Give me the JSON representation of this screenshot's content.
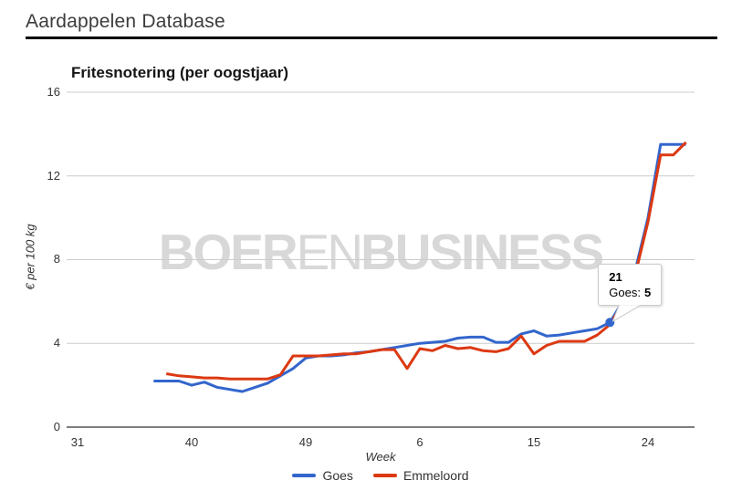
{
  "header": {
    "title": "Aardappelen Database"
  },
  "chart": {
    "title": "Fritesnotering (per oogstjaar)"
  },
  "watermark": {
    "part1": "BOER",
    "part2": "EN",
    "part3": "BUSINESS"
  },
  "tooltip": {
    "week": "21",
    "series_label": "Goes:",
    "value": "5"
  },
  "chart_data": {
    "type": "line",
    "title": "Fritesnotering (per oogstjaar)",
    "xlabel": "Week",
    "ylabel": "€ per 100 kg",
    "ylim": [
      0,
      16
    ],
    "y_ticks": [
      0,
      4,
      8,
      12,
      16
    ],
    "x_tick_labels": [
      "31",
      "40",
      "49",
      "6",
      "15",
      "24"
    ],
    "x_tick_week_offsets": [
      0,
      9,
      18,
      27,
      36,
      45
    ],
    "grid": true,
    "legend_position": "bottom",
    "weeks": [
      "37",
      "38",
      "39",
      "40",
      "41",
      "42",
      "43",
      "44",
      "45",
      "46",
      "47",
      "48",
      "49",
      "50",
      "51",
      "52",
      "1",
      "2",
      "3",
      "4",
      "5",
      "6",
      "7",
      "8",
      "9",
      "10",
      "11",
      "12",
      "13",
      "14",
      "15",
      "16",
      "17",
      "18",
      "19",
      "20",
      "21",
      "22",
      "23",
      "24",
      "25",
      "26",
      "27"
    ],
    "series": [
      {
        "name": "Goes",
        "color": "#3366cc",
        "start_week_offset": 6,
        "values": [
          2.2,
          2.2,
          2.2,
          2.0,
          2.15,
          1.9,
          1.8,
          1.7,
          1.9,
          2.1,
          2.45,
          2.8,
          3.3,
          3.4,
          3.4,
          3.45,
          3.55,
          3.6,
          3.7,
          3.8,
          3.9,
          4.0,
          4.05,
          4.1,
          4.25,
          4.3,
          4.3,
          4.05,
          4.05,
          4.45,
          4.6,
          4.35,
          4.4,
          4.5,
          4.6,
          4.7,
          5.0,
          6.0,
          7.5,
          10.0,
          13.5,
          13.5,
          13.5
        ]
      },
      {
        "name": "Emmeloord",
        "color": "#dc3912",
        "start_week_offset": 7,
        "values": [
          2.55,
          2.45,
          2.4,
          2.35,
          2.35,
          2.3,
          2.3,
          2.3,
          2.3,
          2.5,
          3.4,
          3.4,
          3.4,
          3.45,
          3.5,
          3.5,
          3.6,
          3.7,
          3.7,
          2.8,
          3.75,
          3.65,
          3.9,
          3.75,
          3.8,
          3.65,
          3.6,
          3.75,
          4.35,
          3.5,
          3.9,
          4.1,
          4.1,
          4.1,
          4.4,
          4.9,
          5.9,
          7.3,
          9.8,
          13.0,
          13.0,
          13.6
        ]
      }
    ],
    "highlight": {
      "series": "Goes",
      "week": "21",
      "week_offset": 42,
      "value": 5
    }
  },
  "colors": {
    "goes_line": "#3366cc",
    "emmeloord_line": "#dc3912",
    "gridline": "#cccccc",
    "axis_baseline": "#555555",
    "watermark": "#d8d8d8"
  }
}
